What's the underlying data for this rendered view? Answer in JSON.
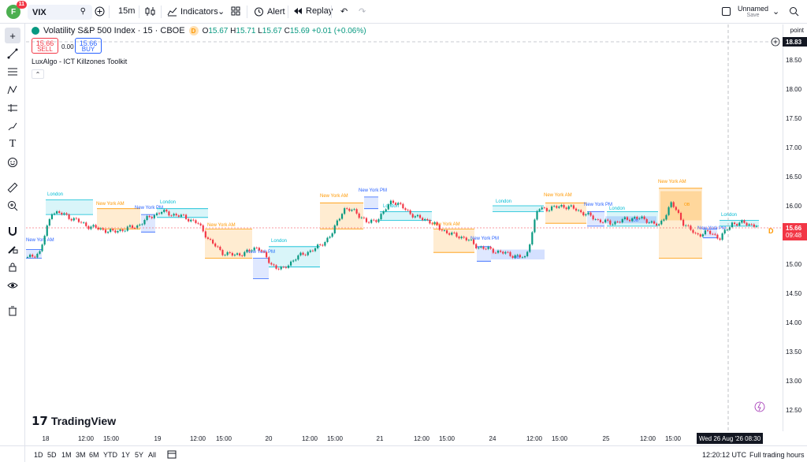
{
  "topbar": {
    "avatar_letter": "F",
    "avatar_badge": "11",
    "symbol": "VIX",
    "interval": "15m",
    "indicators_label": "Indicators",
    "alert_label": "Alert",
    "replay_label": "Replay",
    "layout_name": "Unnamed",
    "layout_status": "Save"
  },
  "legend": {
    "title": "Volatility S&P 500 Index · 15 · CBOE",
    "d_badge": "D",
    "o_label": "O",
    "o_value": "15.67",
    "h_label": "H",
    "h_value": "15.71",
    "l_label": "L",
    "l_value": "15.67",
    "c_label": "C",
    "c_value": "15.69",
    "change": "+0.01 (+0.06%)",
    "sell_price": "15.66",
    "sell_label": "SELL",
    "spread": "0.00",
    "buy_price": "15.66",
    "buy_label": "BUY",
    "indicator": "LuxAlgo - ICT Killzones Toolkit"
  },
  "price_axis": {
    "unit": "point",
    "ticks": [
      "18.50",
      "18.00",
      "17.50",
      "17.00",
      "16.50",
      "16.00",
      "15.50",
      "15.00",
      "14.50",
      "14.00",
      "13.50",
      "13.00",
      "12.50"
    ],
    "crosshair_price": "18.83",
    "last_price": "15.66",
    "countdown": "09:48"
  },
  "time_axis": {
    "ticks": [
      "18",
      "12:00",
      "15:00",
      "19",
      "12:00",
      "15:00",
      "20",
      "12:00",
      "15:00",
      "21",
      "12:00",
      "15:00",
      "24",
      "12:00",
      "15:00",
      "25",
      "12:00",
      "15:00"
    ],
    "crosshair_time": "Wed 26 Aug '26   08:30"
  },
  "sessions": [
    {
      "label": "New York AM",
      "color": "#ff9800"
    },
    {
      "label": "London",
      "color": "#00bcd4"
    },
    {
      "label": "New York AM",
      "color": "#ff9800"
    },
    {
      "label": "New York PM",
      "color": "#2962ff"
    },
    {
      "label": "London",
      "color": "#00bcd4"
    },
    {
      "label": "New York AM",
      "color": "#ff9800"
    },
    {
      "label": "New York PM",
      "color": "#2962ff"
    },
    {
      "label": "London",
      "color": "#00bcd4"
    },
    {
      "label": "New York AM",
      "color": "#ff9800"
    },
    {
      "label": "New York PM",
      "color": "#2962ff"
    },
    {
      "label": "London",
      "color": "#00bcd4"
    },
    {
      "label": "New York AM",
      "color": "#ff9800"
    },
    {
      "label": "New York PM",
      "color": "#2962ff"
    },
    {
      "label": "London",
      "color": "#00bcd4"
    },
    {
      "label": "New York AM",
      "color": "#ff9800"
    },
    {
      "label": "New York PM",
      "color": "#2962ff"
    },
    {
      "label": "London",
      "color": "#00bcd4"
    },
    {
      "label": "New York AM",
      "color": "#ff9800"
    },
    {
      "label": "New York PM",
      "color": "#2962ff"
    },
    {
      "label": "London",
      "color": "#00bcd4"
    }
  ],
  "ob_labels": [
    "OB",
    "OB",
    "OB"
  ],
  "watermark": "TradingView",
  "bottombar": {
    "ranges": [
      "1D",
      "5D",
      "1M",
      "3M",
      "6M",
      "YTD",
      "1Y",
      "5Y",
      "All"
    ],
    "clock": "12:20:12 UTC",
    "hours_mode": "Full trading hours"
  },
  "colors": {
    "up": "#089981",
    "down": "#f23645",
    "london": "#00bcd4",
    "ny_am": "#ff9800",
    "ny_pm": "#2962ff"
  },
  "chart_data": {
    "type": "candlestick",
    "symbol": "VIX",
    "ylim": [
      12.3,
      18.9
    ],
    "close_path": [
      15.1,
      15.2,
      15.9,
      15.85,
      15.75,
      15.65,
      15.6,
      15.55,
      15.6,
      15.65,
      15.8,
      15.9,
      15.85,
      15.8,
      15.7,
      15.4,
      15.2,
      15.15,
      15.2,
      15.3,
      15.0,
      14.9,
      15.1,
      15.2,
      15.3,
      15.5,
      15.95,
      15.9,
      15.7,
      15.8,
      16.1,
      15.95,
      15.8,
      15.75,
      15.6,
      15.5,
      15.45,
      15.3,
      15.25,
      15.2,
      15.15,
      15.1,
      15.95,
      15.95,
      16.0,
      15.95,
      15.85,
      15.75,
      15.7,
      15.75,
      15.8,
      15.75,
      15.65,
      16.05,
      15.7,
      15.5,
      15.55,
      15.45,
      15.7,
      15.7,
      15.66
    ]
  }
}
